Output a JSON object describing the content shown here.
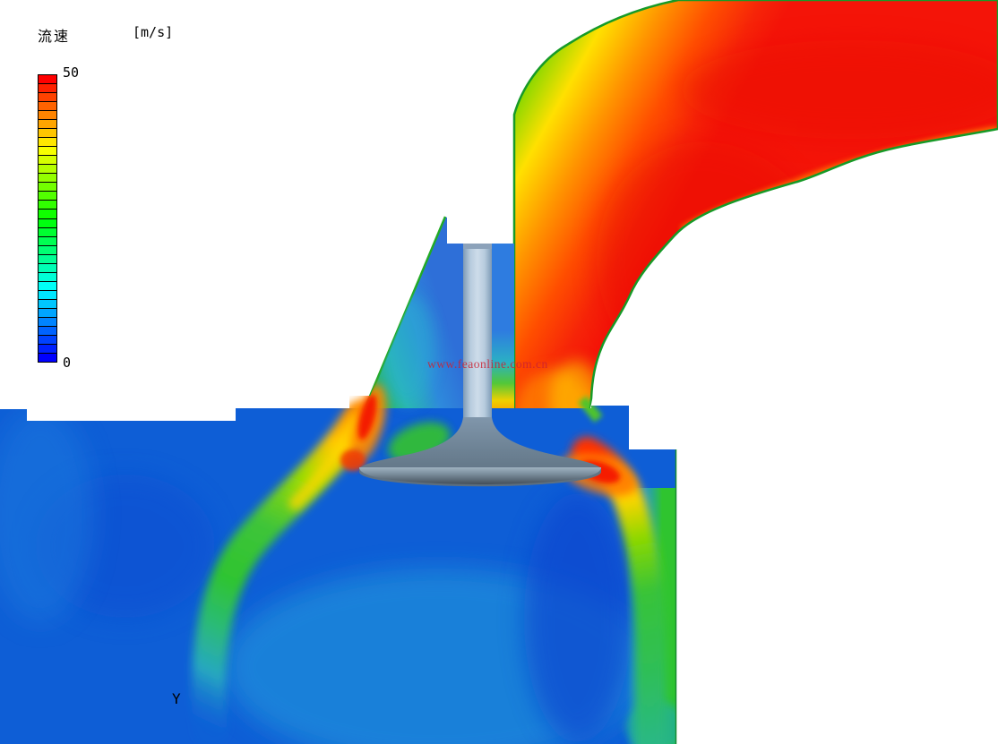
{
  "legend": {
    "title": "流速",
    "unit": "[m/s]",
    "max_label": "50",
    "min_label": "0",
    "colors": [
      "#ff0000",
      "#ff2100",
      "#ff4200",
      "#ff6300",
      "#ff8400",
      "#ffa500",
      "#ffc600",
      "#ffe700",
      "#f7ff00",
      "#d6ff00",
      "#b5ff00",
      "#94ff00",
      "#73ff00",
      "#52ff00",
      "#31ff00",
      "#10ff00",
      "#00ff10",
      "#00ff31",
      "#00ff52",
      "#00ff73",
      "#00ff94",
      "#00ffb5",
      "#00ffd6",
      "#00fff7",
      "#00e7ff",
      "#00c6ff",
      "#00a5ff",
      "#0084ff",
      "#0063ff",
      "#0042ff",
      "#0021ff",
      "#0000ff"
    ]
  },
  "watermark": {
    "text": "www.feaonline.com.cn"
  },
  "axis": {
    "label": "Y"
  },
  "palette": {
    "background": "#ffffff",
    "port_red": "#f41408",
    "fringe_green": "#18b627",
    "fringe_yellow": "#ffe000",
    "fringe_orange": "#ff9400",
    "cylinder_blue": "#0e5ed6",
    "jet_green": "#2fc42f",
    "jet_cyan": "#27a8c0",
    "hot_spot_red": "#f41e00",
    "valve_body": "#8096ab",
    "valve_rim_dark": "#39434d",
    "watermark_red": "#cc2233"
  }
}
